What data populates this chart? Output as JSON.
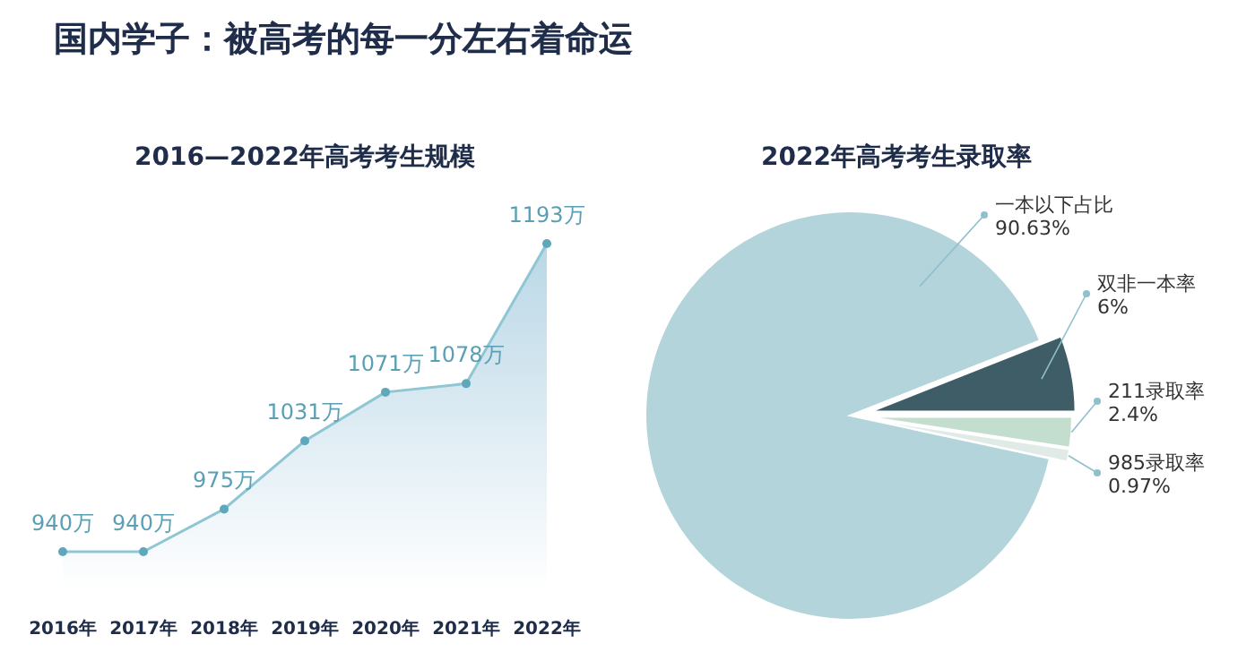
{
  "chart_data": [
    {
      "type": "area",
      "title": "2016—2022年高考考生规模",
      "annotations": [
        "国内学子：被高考的每一分左右着命运"
      ],
      "categories": [
        "2016年",
        "2017年",
        "2018年",
        "2019年",
        "2020年",
        "2021年",
        "2022年"
      ],
      "series": [
        {
          "color": "#8fc6d3",
          "values": [
            940,
            940,
            975,
            1031,
            1071,
            1078,
            1193
          ],
          "value_labels": [
            "940万",
            "940万",
            "975万",
            "1031万",
            "1071万",
            "1078万",
            "1193万"
          ]
        }
      ],
      "marker": "circle"
    },
    {
      "type": "pie",
      "title": "2022年高考考生录取率",
      "categories": [
        "一本以下占比",
        "双非一本率",
        "211录取率",
        "985录取率"
      ],
      "values": [
        90.63,
        6,
        2.4,
        0.97
      ],
      "colors": [
        "#b3d4db",
        "#3e5d66",
        "#c3dece",
        "#e0ebe8"
      ],
      "value_labels": [
        "90.63%",
        "6%",
        "2.4%",
        "0.97%"
      ]
    }
  ]
}
